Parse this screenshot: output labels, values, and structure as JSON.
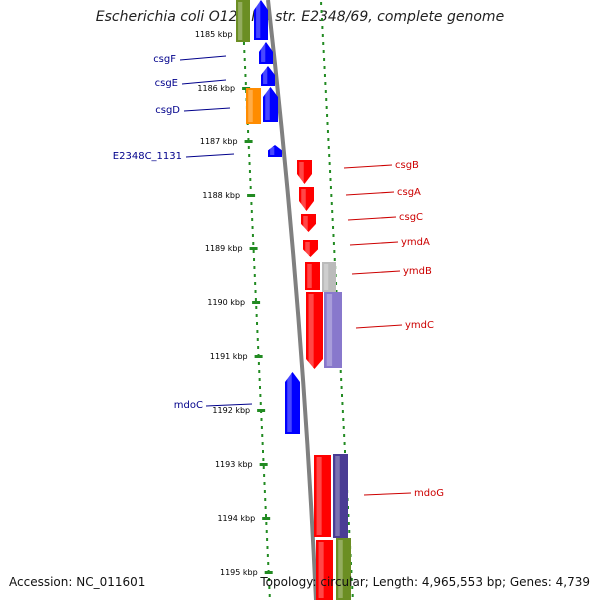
{
  "title": "Escherichia coli O127:H6 str. E2348/69, complete genome",
  "accession_text": "Accession: NC_011601",
  "topology_text": "Topology: circular; Length: 4,965,553 bp; Genes: 4,739",
  "colors": {
    "blue": "#0000ff",
    "red": "#ff0000",
    "orange": "#ff8c00",
    "olive": "#6b8e23",
    "grey": "#bbbbbb",
    "lavender": "#8878cc",
    "slate": "#4a3c94",
    "tick": "#228b22",
    "left_label": "#00008b",
    "right_label": "#cc0000",
    "backbone": "#808080"
  },
  "kbp_ticks": [
    "1185 kbp",
    "1186 kbp",
    "1187 kbp",
    "1188 kbp",
    "1189 kbp",
    "1190 kbp",
    "1191 kbp",
    "1192 kbp",
    "1193 kbp",
    "1194 kbp",
    "1195 kbp"
  ],
  "left_genes": [
    "csgF",
    "csgE",
    "csgD",
    "E2348C_1131",
    "mdoC"
  ],
  "right_genes": [
    "csgB",
    "csgA",
    "csgC",
    "ymdA",
    "ymdB",
    "ymdC",
    "mdoG"
  ]
}
